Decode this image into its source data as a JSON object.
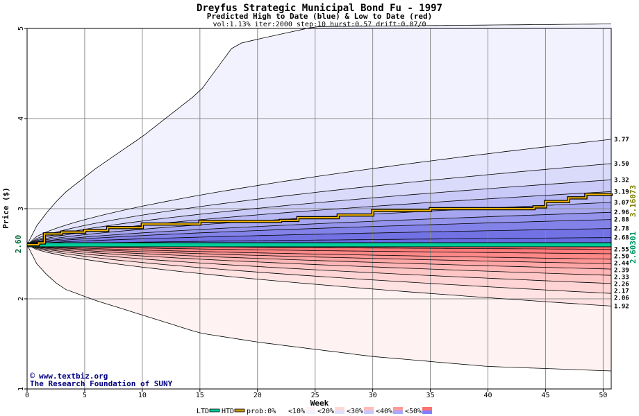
{
  "chart_data": {
    "type": "area",
    "title": "Dreyfus Strategic Municipal Bond Fu - 1997",
    "subtitle": "Predicted High to Date (blue) &  Low to Date (red)",
    "params": "vol:1.13% iter:2000 step:10 hurst:0.57 drift:0.07/0",
    "xlabel": "Week",
    "ylabel": "Price ($)",
    "xlim": [
      0,
      50.7
    ],
    "ylim": [
      1,
      5
    ],
    "xticks": [
      0,
      5,
      10,
      15,
      20,
      25,
      30,
      35,
      40,
      45,
      50
    ],
    "yticks": [
      1,
      2,
      3,
      4,
      5
    ],
    "grid": true,
    "start_price": 2.6,
    "start_price_label": "2.60",
    "outer_bounds": {
      "upper": {
        "x": [
          0,
          1,
          3,
          6,
          10,
          15,
          18,
          20,
          25,
          50.7
        ],
        "y": [
          2.6,
          2.85,
          3.15,
          3.45,
          3.8,
          4.3,
          4.82,
          4.88,
          5.02,
          5.05
        ]
      },
      "lower": {
        "x": [
          0,
          1,
          3,
          6,
          10,
          15,
          20,
          30,
          40,
          50.7
        ],
        "y": [
          2.6,
          2.35,
          2.12,
          1.98,
          1.82,
          1.62,
          1.52,
          1.36,
          1.25,
          1.2
        ]
      }
    },
    "high_quantiles": {
      "labels": [
        "3.77",
        "3.50",
        "3.32",
        "3.19",
        "3.07",
        "2.96",
        "2.88",
        "2.78",
        "2.68"
      ],
      "values": [
        3.77,
        3.5,
        3.32,
        3.19,
        3.07,
        2.96,
        2.88,
        2.78,
        2.68
      ]
    },
    "low_quantiles": {
      "labels": [
        "2.55",
        "2.50",
        "2.44",
        "2.39",
        "2.33",
        "2.26",
        "2.17",
        "2.06",
        "1.92"
      ],
      "values": [
        2.55,
        2.5,
        2.44,
        2.39,
        2.33,
        2.26,
        2.17,
        2.06,
        1.92
      ]
    },
    "htd_line": {
      "name": "HTD",
      "label": "3.16073",
      "color": "#c89600",
      "x": [
        0,
        1,
        1.5,
        3,
        5,
        7,
        10,
        15,
        22,
        23.5,
        27,
        30,
        35,
        44,
        45,
        47,
        48.5,
        50.7
      ],
      "y": [
        2.6,
        2.62,
        2.72,
        2.74,
        2.76,
        2.79,
        2.83,
        2.86,
        2.87,
        2.9,
        2.93,
        2.98,
        3.0,
        3.02,
        3.08,
        3.12,
        3.16,
        3.17
      ]
    },
    "ltd_line": {
      "name": "LTD",
      "label": "2.60301",
      "color": "#009966",
      "y": 2.6
    },
    "end_labels_color": "#808000",
    "legend": {
      "placement": "bottom",
      "items": [
        {
          "label": "LTD",
          "color": "#00cc99",
          "kind": "line"
        },
        {
          "label": "HTD",
          "color": "#c89600",
          "kind": "line"
        },
        {
          "label": "prob:0%",
          "color": "#ffffff",
          "kind": "swatch"
        },
        {
          "label": "<10%",
          "color": "#fff2f2",
          "color2": "#f2f2ff",
          "kind": "swatch"
        },
        {
          "label": "<20%",
          "color": "#ffd9d9",
          "color2": "#e0e0ff",
          "kind": "swatch"
        },
        {
          "label": "<30%",
          "color": "#ffbcbc",
          "color2": "#c8c8ff",
          "kind": "swatch"
        },
        {
          "label": "<40%",
          "color": "#ff9a9a",
          "color2": "#a8a8ff",
          "kind": "swatch"
        },
        {
          "label": "<50%",
          "color": "#ff7070",
          "color2": "#8080ff",
          "kind": "swatch"
        }
      ]
    }
  },
  "credits": {
    "site": "www.textbiz.org",
    "org": "The Research Foundation of SUNY",
    "color": "#000080"
  }
}
